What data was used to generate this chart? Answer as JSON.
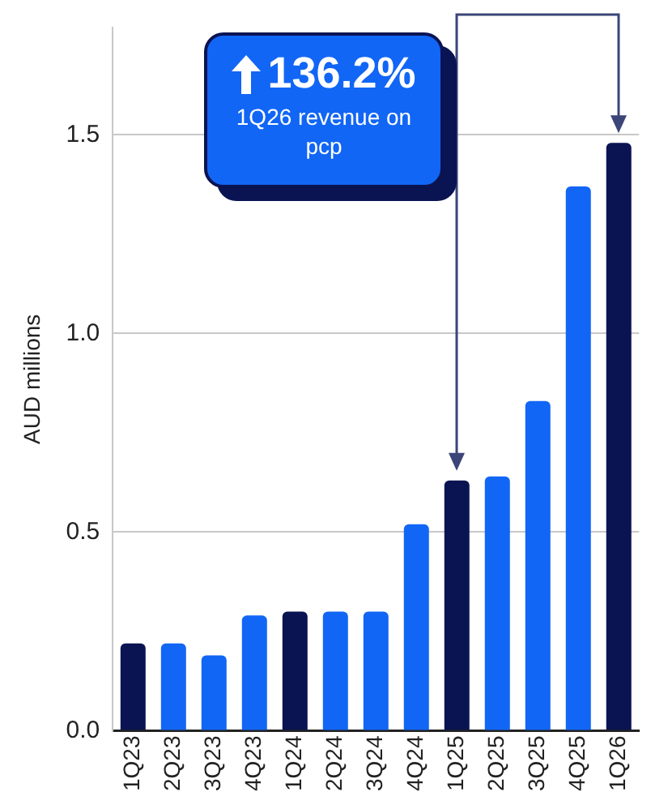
{
  "chart_data": {
    "type": "bar",
    "ylabel": "AUD millions",
    "categories": [
      "1Q23",
      "2Q23",
      "3Q23",
      "4Q23",
      "1Q24",
      "2Q24",
      "3Q24",
      "4Q24",
      "1Q25",
      "2Q25",
      "3Q25",
      "4Q25",
      "1Q26"
    ],
    "values": [
      0.22,
      0.22,
      0.19,
      0.29,
      0.3,
      0.3,
      0.3,
      0.52,
      0.63,
      0.64,
      0.83,
      1.37,
      1.48
    ],
    "colors": [
      "#0b1452",
      "#1166f5",
      "#1166f5",
      "#1166f5",
      "#0b1452",
      "#1166f5",
      "#1166f5",
      "#1166f5",
      "#0b1452",
      "#1166f5",
      "#1166f5",
      "#1166f5",
      "#0b1452"
    ],
    "ylim": [
      0,
      1.77
    ],
    "yticks": [
      {
        "value": 0,
        "label": "0.0"
      },
      {
        "value": 0.5,
        "label": "0.5"
      },
      {
        "value": 1,
        "label": "1.0"
      },
      {
        "value": 1.5,
        "label": "1.5"
      }
    ],
    "grid": "y",
    "legend": false,
    "annotations": [
      "136.2%",
      "1Q26 revenue on pcp"
    ]
  }
}
